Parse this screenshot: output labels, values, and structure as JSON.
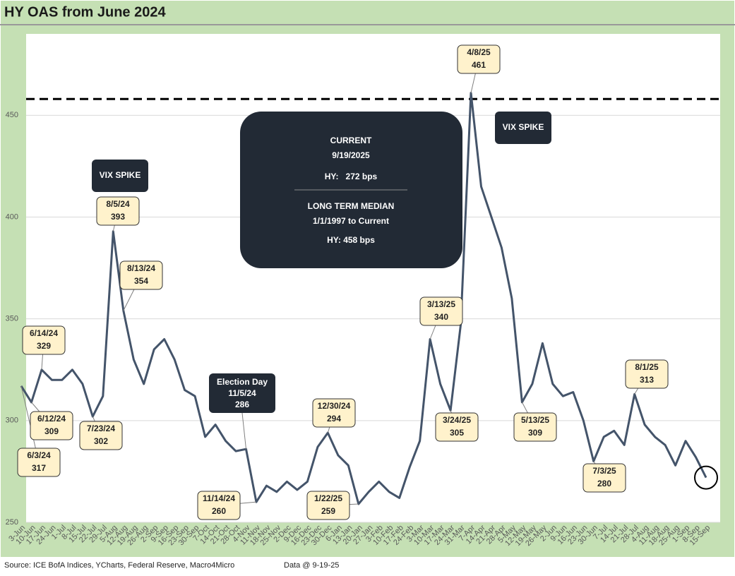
{
  "chart_data": {
    "type": "line",
    "title": "HY OAS from June 2024",
    "categories": [
      "3-Jun",
      "10-Jun",
      "17-Jun",
      "24-Jun",
      "1-Jul",
      "8-Jul",
      "15-Jul",
      "22-Jul",
      "29-Jul",
      "5-Aug",
      "12-Aug",
      "19-Aug",
      "26-Aug",
      "2-Sep",
      "9-Sep",
      "16-Sep",
      "23-Sep",
      "30-Sep",
      "7-Oct",
      "14-Oct",
      "21-Oct",
      "28-Oct",
      "4-Nov",
      "11-Nov",
      "18-Nov",
      "25-Nov",
      "2-Dec",
      "9-Dec",
      "16-Dec",
      "23-Dec",
      "30-Dec",
      "6-Jan",
      "13-Jan",
      "20-Jan",
      "27-Jan",
      "3-Feb",
      "10-Feb",
      "17-Feb",
      "24-Feb",
      "3-Mar",
      "10-Mar",
      "17-Mar",
      "24-Mar",
      "31-Mar",
      "7-Apr",
      "14-Apr",
      "21-Apr",
      "28-Apr",
      "5-May",
      "12-May",
      "19-May",
      "26-May",
      "2-Jun",
      "9-Jun",
      "16-Jun",
      "23-Jun",
      "30-Jun",
      "7-Jul",
      "14-Jul",
      "21-Jul",
      "28-Jul",
      "4-Aug",
      "11-Aug",
      "18-Aug",
      "25-Aug",
      "1-Sep",
      "8-Sep",
      "15-Sep"
    ],
    "series": [
      {
        "name": "HY OAS",
        "color": "#44546a",
        "values": [
          317,
          309,
          325,
          320,
          320,
          325,
          318,
          302,
          312,
          393,
          354,
          330,
          318,
          335,
          340,
          330,
          315,
          312,
          292,
          298,
          290,
          285,
          286,
          260,
          268,
          265,
          270,
          266,
          270,
          287,
          294,
          283,
          278,
          259,
          265,
          270,
          265,
          262,
          277,
          290,
          340,
          318,
          305,
          347,
          461,
          415,
          400,
          385,
          360,
          309,
          318,
          338,
          318,
          312,
          314,
          300,
          280,
          292,
          295,
          288,
          313,
          298,
          292,
          288,
          278,
          290,
          282,
          272
        ]
      }
    ],
    "ylim": [
      250,
      490
    ],
    "yticks": [
      250,
      300,
      350,
      400,
      450
    ],
    "grid": true,
    "reference_line": 458,
    "annotations": [
      {
        "date": "6/3/24",
        "value": 317
      },
      {
        "date": "6/12/24",
        "value": 309
      },
      {
        "date": "6/14/24",
        "value": 329
      },
      {
        "date": "7/23/24",
        "value": 302
      },
      {
        "date": "8/5/24",
        "value": 393
      },
      {
        "date": "8/13/24",
        "value": 354
      },
      {
        "date": "11/14/24",
        "value": 260
      },
      {
        "date": "12/30/24",
        "value": 294
      },
      {
        "date": "1/22/25",
        "value": 259
      },
      {
        "date": "3/13/25",
        "value": 340
      },
      {
        "date": "3/24/25",
        "value": 305
      },
      {
        "date": "4/8/25",
        "value": 461
      },
      {
        "date": "5/13/25",
        "value": 309
      },
      {
        "date": "7/3/25",
        "value": 280
      },
      {
        "date": "8/1/25",
        "value": 313
      }
    ],
    "vix_labels": [
      "VIX SPIKE",
      "VIX SPIKE"
    ],
    "election": {
      "title": "Election Day",
      "date": "11/5/24",
      "value": 286
    },
    "summary": {
      "current_title": "CURRENT",
      "current_date": "9/19/2025",
      "current_value": "HY:   272 bps",
      "median_title": "LONG TERM MEDIAN",
      "median_period": "1/1/1997 to Current",
      "median_value": "HY: 458 bps"
    },
    "source": "Source: ICE BofA Indices, YCharts, Federal Reserve, Macro4Micro",
    "data_date": "Data @ 9-19-25"
  }
}
